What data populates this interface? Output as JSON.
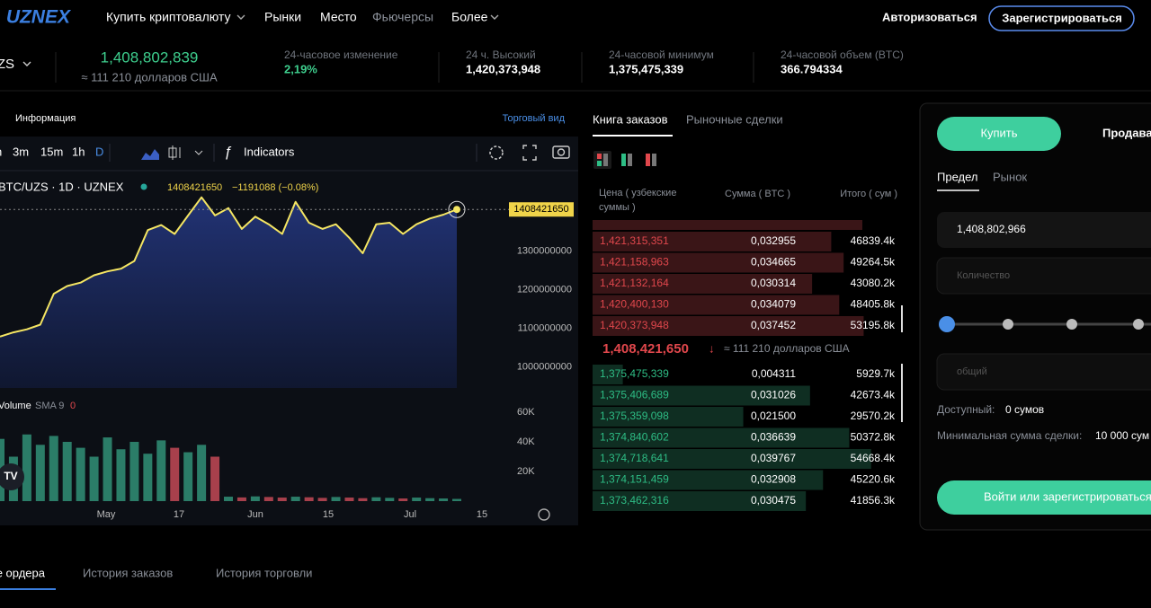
{
  "header": {
    "logo": "UZNEX",
    "nav": [
      "Купить криптовалюту",
      "Рынки",
      "Место",
      "Фьючерсы",
      "Более"
    ],
    "login": "Авторизоваться",
    "register": "Зарегистрироваться"
  },
  "ticker": {
    "pair": "UZS",
    "price": "1,408,802,839",
    "price_usd": "≈ 111 210 долларов США",
    "stats": [
      {
        "label": "24-часовое изменение",
        "value": "2,19%"
      },
      {
        "label": "24 ч. Высокий",
        "value": "1,420,373,948"
      },
      {
        "label": "24-часовой минимум",
        "value": "1,375,475,339"
      },
      {
        "label": "24-часовой объем (BTC)",
        "value": "366.794334"
      }
    ]
  },
  "chart": {
    "tabs": {
      "info": "Информация",
      "trading_view": "Торговый вид"
    },
    "intervals": [
      "3m",
      "15m",
      "1h",
      "D"
    ],
    "indicators": "Indicators",
    "legend": {
      "symbol": "BTC/UZS · 1D · UZNEX",
      "last": "1408421650",
      "change": "−1191088 (−0.08%)"
    },
    "ylim": [
      946000000,
      1509000000
    ],
    "yticks": [
      1300000000,
      1200000000,
      1100000000,
      1000000000
    ],
    "price": {
      "color": "#f5e663",
      "values": [
        1079000000,
        1090000000,
        1098000000,
        1110000000,
        1190000000,
        1210000000,
        1219000000,
        1238000000,
        1248000000,
        1255000000,
        1275000000,
        1355000000,
        1368000000,
        1345000000,
        1393000000,
        1440000000,
        1393000000,
        1412000000,
        1358000000,
        1390000000,
        1370000000,
        1345000000,
        1428000000,
        1374000000,
        1358000000,
        1370000000,
        1335000000,
        1295000000,
        1370000000,
        1374000000,
        1345000000,
        1370000000,
        1385000000,
        1395000000,
        1408421650
      ]
    },
    "volume_legend": {
      "name": "Volume",
      "sma": "SMA 9",
      "value": "0"
    },
    "vlim": [
      0,
      60000
    ],
    "vticks": [
      {
        "value": 60000,
        "label": "60K"
      },
      {
        "value": 40000,
        "label": "40K"
      },
      {
        "value": 20000,
        "label": "20K"
      }
    ],
    "volume": {
      "up_color": "#2b7d68",
      "down_color": "#a8404c",
      "values": [
        42000,
        30000,
        45000,
        38000,
        44000,
        40000,
        36000,
        30000,
        43000,
        35000,
        40000,
        32000,
        41000,
        36000,
        33000,
        38000,
        30000,
        3000,
        2500,
        3200,
        2800,
        2400,
        3000,
        2600,
        2200,
        2800,
        2400,
        2000,
        2600,
        2200,
        1800,
        2400,
        2000,
        1800,
        1500
      ]
    },
    "xlabels": [
      "May",
      "17",
      "Jun",
      "15",
      "Jul",
      "15"
    ]
  },
  "order_book": {
    "tabs": [
      "Книга заказов",
      "Рыночные сделки"
    ],
    "columns": [
      "Цена ( узбекские суммы )",
      "Сумма ( BTC )",
      "Итого ( сум )"
    ],
    "asks": [
      [
        "1,421,315,351",
        "0,032955",
        "46839.4k"
      ],
      [
        "1,421,158,963",
        "0,034665",
        "49264.5k"
      ],
      [
        "1,421,132,164",
        "0,030314",
        "43080.2k"
      ],
      [
        "1,420,400,130",
        "0,034079",
        "48405.8k"
      ],
      [
        "1,420,373,948",
        "0,037452",
        "53195.8k"
      ]
    ],
    "mid": {
      "price": "1,408,421,650",
      "arrow": "↓",
      "usd": "≈ 111 210 долларов США"
    },
    "bids": [
      [
        "1,375,475,339",
        "0,004311",
        "5929.7k"
      ],
      [
        "1,375,406,689",
        "0,031026",
        "42673.4k"
      ],
      [
        "1,375,359,098",
        "0,021500",
        "29570.2k"
      ],
      [
        "1,374,840,602",
        "0,036639",
        "50372.8k"
      ],
      [
        "1,374,718,641",
        "0,039767",
        "54668.4k"
      ],
      [
        "1,374,151,459",
        "0,032908",
        "45220.6k"
      ],
      [
        "1,373,462,316",
        "0,030475",
        "41856.3k"
      ]
    ]
  },
  "trade": {
    "buy": "Купить",
    "sell": "Продавать",
    "limit": "Предел",
    "market": "Рынок",
    "price": "1,408,802,966",
    "quantity": "Количество",
    "total": "общий",
    "available_label": "Доступный:",
    "available": "0 сумов",
    "min_label": "Минимальная сумма сделки:",
    "min": "10 000 сум",
    "submit": "Войти или зарегистрироваться"
  },
  "orders": {
    "tabs": [
      "Открытые ордера",
      "История заказов",
      "История торговли"
    ]
  }
}
